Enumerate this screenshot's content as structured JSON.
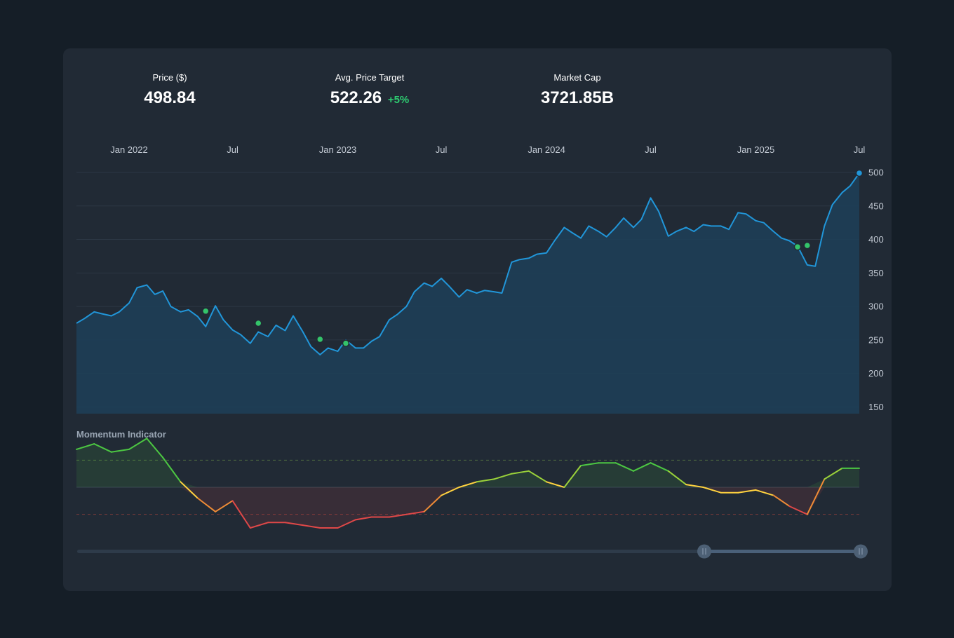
{
  "stats": [
    {
      "label": "Price ($)",
      "value": "498.84",
      "delta": ""
    },
    {
      "label": "Avg. Price Target",
      "value": "522.26",
      "delta": "+5%"
    },
    {
      "label": "Market Cap",
      "value": "3721.85B",
      "delta": ""
    }
  ],
  "colors": {
    "background": "#151e27",
    "card": "#212a35",
    "price_line": "#2196d9",
    "price_fill": "#1d4058",
    "marker_green": "#34c46a",
    "momentum_positive": "#4cc742",
    "momentum_neutral": "#ffd23f",
    "momentum_negative": "#e04848",
    "slider_track": "#3a4a5c",
    "slider_handle": "#4d6075"
  },
  "momentum": {
    "title": "Momentum Indicator"
  },
  "chart_data": [
    {
      "type": "area",
      "title": "",
      "xlabel": "",
      "ylabel": "",
      "x_tick_labels": [
        "Jan 2022",
        "Jul",
        "Jan 2023",
        "Jul",
        "Jan 2024",
        "Jul",
        "Jan 2025",
        "Jul"
      ],
      "x_tick_dates": [
        "2022-01-01",
        "2022-07-01",
        "2023-01-01",
        "2023-07-01",
        "2024-01-01",
        "2024-07-01",
        "2025-01-01",
        "2025-07-01"
      ],
      "x_range": [
        "2021-10-01",
        "2025-07-01"
      ],
      "y_ticks": [
        150,
        200,
        250,
        300,
        350,
        400,
        450,
        500
      ],
      "ylim": [
        140,
        500
      ],
      "grid": true,
      "series": [
        {
          "values_per_week": "weekly closing prices",
          "x": [
            "2021-10-01",
            "2021-10-15",
            "2021-11-01",
            "2021-11-15",
            "2021-12-01",
            "2021-12-15",
            "2022-01-01",
            "2022-01-15",
            "2022-02-01",
            "2022-02-15",
            "2022-03-01",
            "2022-03-15",
            "2022-04-01",
            "2022-04-15",
            "2022-05-01",
            "2022-05-15",
            "2022-06-01",
            "2022-06-15",
            "2022-07-01",
            "2022-07-15",
            "2022-08-01",
            "2022-08-15",
            "2022-09-01",
            "2022-09-15",
            "2022-10-01",
            "2022-10-15",
            "2022-11-01",
            "2022-11-15",
            "2022-12-01",
            "2022-12-15",
            "2023-01-01",
            "2023-01-15",
            "2023-02-01",
            "2023-02-15",
            "2023-03-01",
            "2023-03-15",
            "2023-04-01",
            "2023-04-15",
            "2023-05-01",
            "2023-05-15",
            "2023-06-01",
            "2023-06-15",
            "2023-07-01",
            "2023-07-15",
            "2023-08-01",
            "2023-08-15",
            "2023-09-01",
            "2023-09-15",
            "2023-10-01",
            "2023-10-15",
            "2023-11-01",
            "2023-11-15",
            "2023-12-01",
            "2023-12-15",
            "2024-01-01",
            "2024-01-15",
            "2024-02-01",
            "2024-02-15",
            "2024-03-01",
            "2024-03-15",
            "2024-04-01",
            "2024-04-15",
            "2024-05-01",
            "2024-05-15",
            "2024-06-01",
            "2024-06-15",
            "2024-07-01",
            "2024-07-15",
            "2024-08-01",
            "2024-08-15",
            "2024-09-01",
            "2024-09-15",
            "2024-10-01",
            "2024-10-15",
            "2024-11-01",
            "2024-11-15",
            "2024-12-01",
            "2024-12-15",
            "2025-01-01",
            "2025-01-15",
            "2025-02-01",
            "2025-02-15",
            "2025-03-01",
            "2025-03-15",
            "2025-04-01",
            "2025-04-15",
            "2025-05-01",
            "2025-05-15",
            "2025-06-01",
            "2025-06-15",
            "2025-07-01"
          ],
          "values": [
            275,
            282,
            292,
            289,
            286,
            292,
            305,
            328,
            332,
            318,
            323,
            300,
            292,
            295,
            285,
            270,
            301,
            280,
            265,
            258,
            245,
            262,
            255,
            272,
            264,
            286,
            262,
            240,
            228,
            238,
            233,
            250,
            238,
            238,
            248,
            255,
            280,
            288,
            300,
            322,
            335,
            330,
            342,
            330,
            314,
            325,
            320,
            324,
            322,
            320,
            366,
            370,
            372,
            378,
            380,
            398,
            418,
            410,
            402,
            420,
            412,
            404,
            418,
            432,
            418,
            430,
            462,
            442,
            405,
            412,
            418,
            412,
            422,
            420,
            420,
            415,
            440,
            438,
            428,
            425,
            412,
            402,
            398,
            390,
            362,
            360,
            420,
            452,
            470,
            480,
            499
          ]
        }
      ],
      "markers": [
        {
          "date": "2022-05-15",
          "value": 293
        },
        {
          "date": "2022-08-15",
          "value": 275
        },
        {
          "date": "2022-12-01",
          "value": 251
        },
        {
          "date": "2023-01-15",
          "value": 245
        },
        {
          "date": "2025-03-15",
          "value": 389
        },
        {
          "date": "2025-04-01",
          "value": 391
        },
        {
          "date": "2025-07-01",
          "value": 499
        }
      ]
    },
    {
      "type": "line",
      "title": "Momentum Indicator",
      "xlabel": "",
      "ylabel": "",
      "x_range": [
        "2021-10-01",
        "2025-07-01"
      ],
      "ylim": [
        -1.5,
        1.5
      ],
      "reference_lines": [
        -1,
        0,
        1
      ],
      "series": [
        {
          "x": [
            "2021-10-01",
            "2021-11-01",
            "2021-12-01",
            "2022-01-01",
            "2022-02-01",
            "2022-03-01",
            "2022-04-01",
            "2022-05-01",
            "2022-06-01",
            "2022-07-01",
            "2022-08-01",
            "2022-09-01",
            "2022-10-01",
            "2022-11-01",
            "2022-12-01",
            "2023-01-01",
            "2023-02-01",
            "2023-03-01",
            "2023-04-01",
            "2023-05-01",
            "2023-06-01",
            "2023-07-01",
            "2023-08-01",
            "2023-09-01",
            "2023-10-01",
            "2023-11-01",
            "2023-12-01",
            "2024-01-01",
            "2024-02-01",
            "2024-03-01",
            "2024-04-01",
            "2024-05-01",
            "2024-06-01",
            "2024-07-01",
            "2024-08-01",
            "2024-09-01",
            "2024-10-01",
            "2024-11-01",
            "2024-12-01",
            "2025-01-01",
            "2025-02-01",
            "2025-03-01",
            "2025-04-01",
            "2025-05-01",
            "2025-06-01",
            "2025-07-01"
          ],
          "values": [
            1.4,
            1.6,
            1.3,
            1.4,
            1.8,
            1.1,
            0.2,
            -0.4,
            -0.9,
            -0.5,
            -1.5,
            -1.3,
            -1.3,
            -1.4,
            -1.5,
            -1.5,
            -1.2,
            -1.1,
            -1.1,
            -1.0,
            -0.9,
            -0.3,
            0.0,
            0.2,
            0.3,
            0.5,
            0.6,
            0.2,
            0.0,
            0.8,
            0.9,
            0.9,
            0.6,
            0.9,
            0.6,
            0.1,
            0.0,
            -0.2,
            -0.2,
            -0.1,
            -0.3,
            -0.7,
            -1.0,
            0.3,
            0.7,
            0.7
          ]
        }
      ]
    }
  ]
}
